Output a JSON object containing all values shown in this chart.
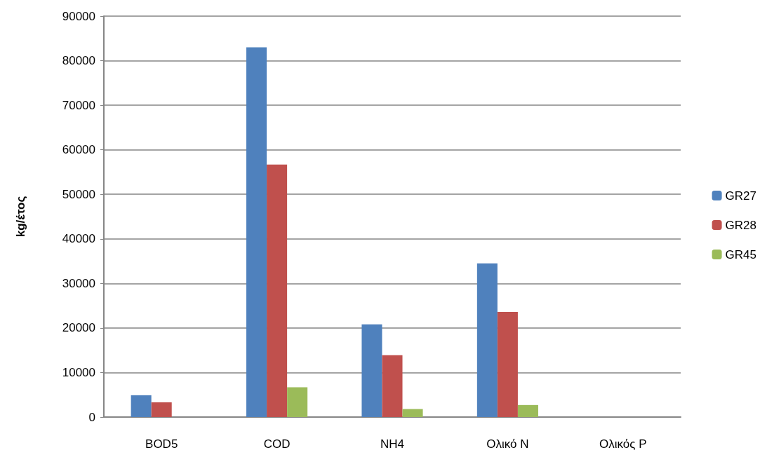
{
  "chart_data": {
    "type": "bar",
    "ylabel": "kg/έτος",
    "categories": [
      "BOD5",
      "COD",
      "NH4",
      "Ολικό N",
      "Ολικός P"
    ],
    "series": [
      {
        "name": "GR27",
        "color": "#4f81bd",
        "values": [
          4900,
          83000,
          20800,
          34500,
          0
        ]
      },
      {
        "name": "GR28",
        "color": "#c0504d",
        "values": [
          3300,
          56700,
          13900,
          23600,
          0
        ]
      },
      {
        "name": "GR45",
        "color": "#9bbb59",
        "values": [
          0,
          6700,
          1800,
          2700,
          0
        ]
      }
    ],
    "ylim": [
      0,
      90000
    ],
    "yticks": [
      0,
      10000,
      20000,
      30000,
      40000,
      50000,
      60000,
      70000,
      80000,
      90000
    ],
    "grid": "y",
    "legend": "right"
  }
}
